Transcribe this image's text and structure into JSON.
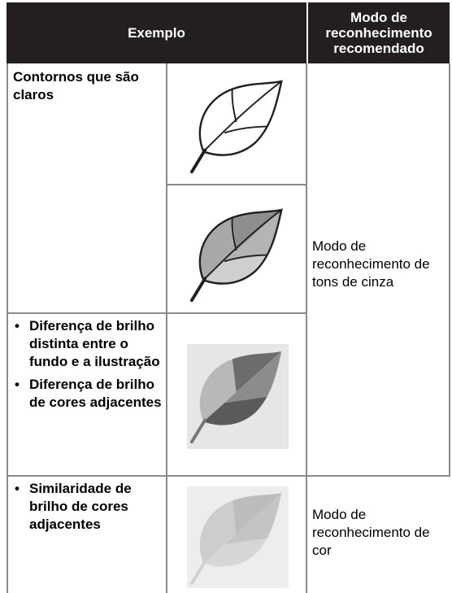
{
  "table": {
    "header": [
      "Exemplo",
      "Modo de reconhecimento recomendado"
    ],
    "rows": [
      {
        "example": "Contornos que são claros",
        "mode": "Modo de reconhecimento de tons de cinza"
      },
      {
        "example": [
          "Diferença de brilho distinta entre o fundo e a ilustração",
          "Diferença de brilho de cores adjacentes"
        ]
      },
      {
        "example": [
          "Similaridade de brilho de cores adjacentes"
        ],
        "mode": "Modo de reconhecimento de cor"
      }
    ]
  }
}
